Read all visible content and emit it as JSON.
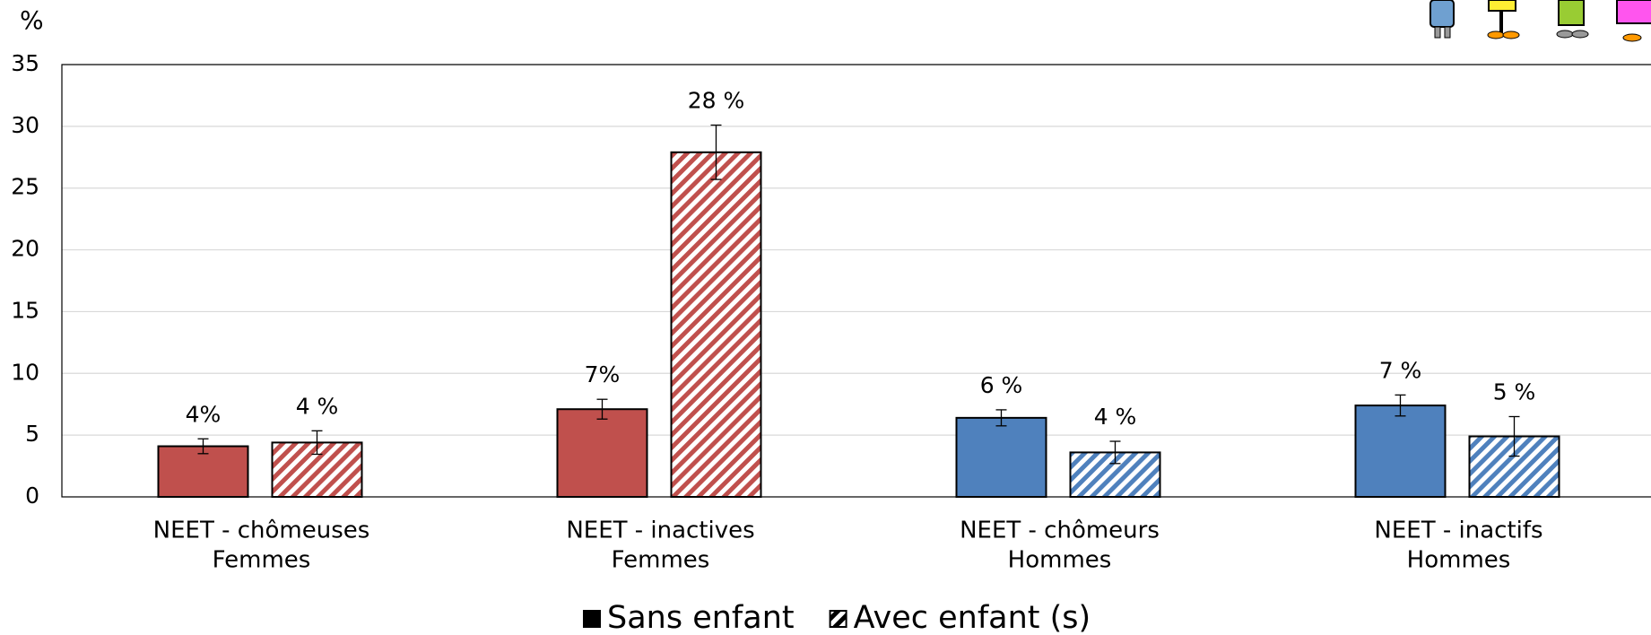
{
  "chart_data": {
    "type": "bar",
    "ylabel": "%",
    "categories": [
      [
        "NEET - chômeuses",
        "Femmes"
      ],
      [
        "NEET - inactives",
        "Femmes"
      ],
      [
        "NEET - chômeurs",
        "Hommes"
      ],
      [
        "NEET - inactifs",
        "Hommes"
      ]
    ],
    "colors": [
      "#c0504d",
      "#c0504d",
      "#4f81bd",
      "#4f81bd"
    ],
    "series": [
      {
        "name": "Sans enfant",
        "color": "#000000",
        "hatch": false,
        "values": [
          4.1,
          7.1,
          6.4,
          7.4
        ],
        "errors": [
          0.6,
          0.8,
          0.65,
          0.85
        ],
        "value_labels": [
          "4%",
          "7%",
          "6 %",
          "7 %"
        ]
      },
      {
        "name": "Avec enfant (s)",
        "color": "#000000",
        "hatch": true,
        "values": [
          4.4,
          27.9,
          3.6,
          4.9
        ],
        "errors": [
          0.95,
          2.2,
          0.9,
          1.6
        ],
        "value_labels": [
          "4 %",
          "28 %",
          "4 %",
          "5 %"
        ]
      }
    ],
    "ylim": [
      0,
      35
    ],
    "yticks": [
      0,
      5,
      10,
      15,
      20,
      25,
      30,
      35
    ],
    "grid": true,
    "legend": "bottom"
  }
}
